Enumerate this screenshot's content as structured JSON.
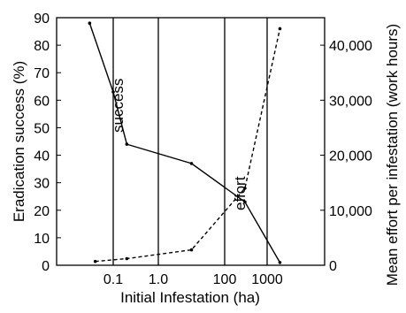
{
  "chart_data": {
    "type": "line",
    "xlabel": "Initial Infestation (ha)",
    "ylabel_left": "Eradication success (%)",
    "ylabel_right": "Mean effort per infestation (work hours)",
    "x_scale": "log",
    "x_tick_labels": [
      "0.1",
      "1.0",
      "100",
      "1000"
    ],
    "x_tick_values": [
      0.1,
      1,
      100,
      1000
    ],
    "ylim_left": [
      0,
      90
    ],
    "yticks_left": [
      "0",
      "10",
      "20",
      "30",
      "40",
      "50",
      "60",
      "70",
      "80",
      "90"
    ],
    "ylim_right": [
      0,
      45000
    ],
    "yticks_right": [
      "0",
      "10,000",
      "20,000",
      "30,000",
      "40,000"
    ],
    "annotations": [
      "success",
      "effort"
    ],
    "series": [
      {
        "key": "success",
        "axis": "left",
        "line_style": "solid",
        "points": [
          {
            "x": 0.03,
            "y": 88
          },
          {
            "x": 0.1,
            "y": 63
          },
          {
            "x": 0.2,
            "y": 44
          },
          {
            "x": 10,
            "y": 37
          },
          {
            "x": 300,
            "y": 23
          },
          {
            "x": 2000,
            "y": 1
          }
        ]
      },
      {
        "key": "effort",
        "axis": "right",
        "line_style": "dashed",
        "points": [
          {
            "x": 0.04,
            "y": 700
          },
          {
            "x": 0.2,
            "y": 1200
          },
          {
            "x": 10,
            "y": 2800
          },
          {
            "x": 300,
            "y": 14000
          },
          {
            "x": 2000,
            "y": 43000
          }
        ]
      }
    ]
  }
}
